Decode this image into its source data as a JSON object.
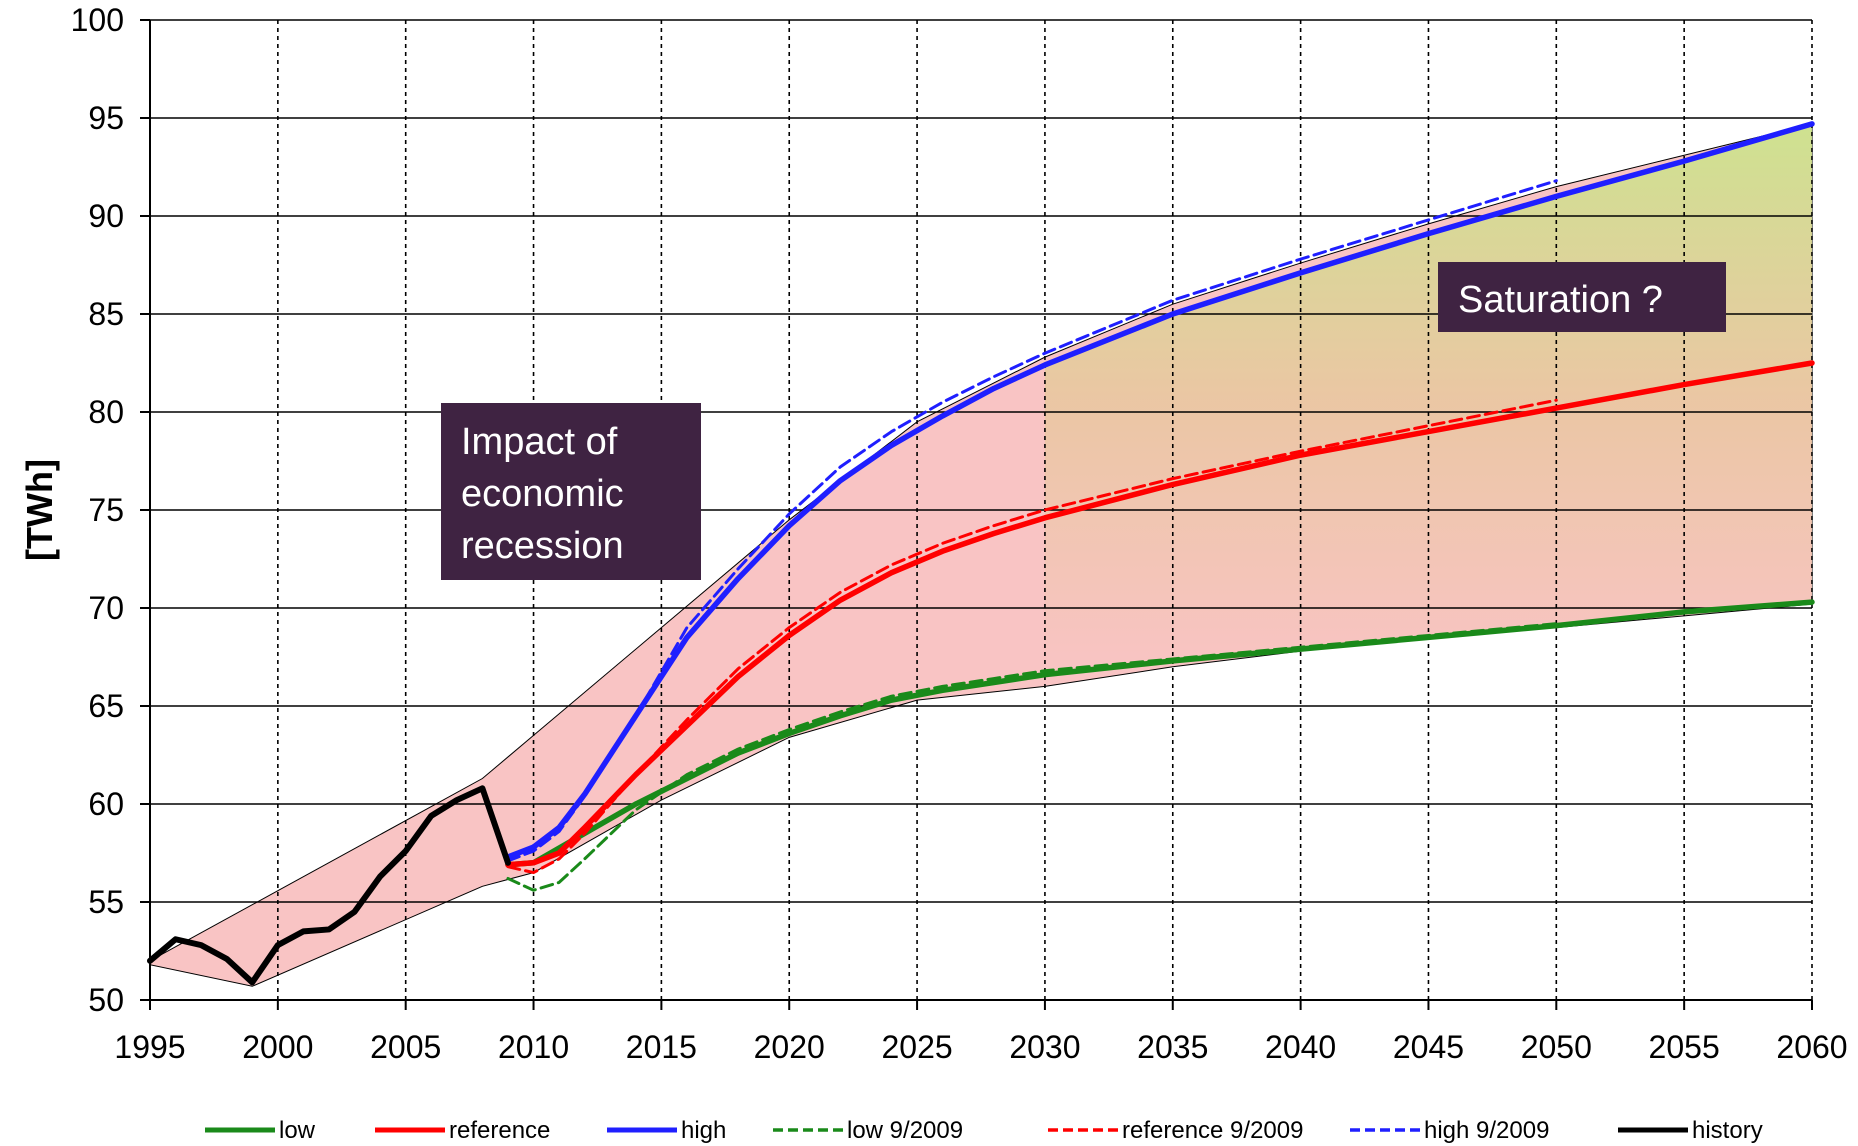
{
  "chart_data": {
    "type": "line",
    "title": "",
    "xlabel": "",
    "ylabel": "[TWh]",
    "xlim": [
      1995,
      2060
    ],
    "ylim": [
      50,
      100
    ],
    "x_ticks": [
      1995,
      2000,
      2005,
      2010,
      2015,
      2020,
      2025,
      2030,
      2035,
      2040,
      2045,
      2050,
      2055,
      2060
    ],
    "y_ticks": [
      50,
      55,
      60,
      65,
      70,
      75,
      80,
      85,
      90,
      95,
      100
    ],
    "grid": true,
    "legend_position": "bottom",
    "colors": {
      "low": "#1a8a1a",
      "reference": "#ff0000",
      "high": "#1f1fff",
      "history": "#000000",
      "annotation_box": "#3f2342",
      "band_fill": "#f9c4c4"
    },
    "series": [
      {
        "name": "low",
        "style": "solid",
        "color": "#1a8a1a",
        "x": [
          2009,
          2010,
          2012,
          2014,
          2016,
          2018,
          2020,
          2022,
          2024,
          2026,
          2028,
          2030,
          2035,
          2040,
          2045,
          2050,
          2055,
          2060
        ],
        "y": [
          56.9,
          57.0,
          58.5,
          60.0,
          61.3,
          62.6,
          63.6,
          64.5,
          65.3,
          65.8,
          66.2,
          66.6,
          67.3,
          67.9,
          68.5,
          69.1,
          69.8,
          70.3
        ]
      },
      {
        "name": "reference",
        "style": "solid",
        "color": "#ff0000",
        "x": [
          2009,
          2010,
          2011,
          2012,
          2014,
          2016,
          2018,
          2020,
          2022,
          2024,
          2026,
          2028,
          2030,
          2035,
          2040,
          2045,
          2050,
          2055,
          2060
        ],
        "y": [
          56.9,
          57.0,
          57.5,
          58.8,
          61.5,
          64.0,
          66.5,
          68.6,
          70.4,
          71.8,
          72.9,
          73.8,
          74.6,
          76.3,
          77.8,
          79.0,
          80.2,
          81.4,
          82.5
        ]
      },
      {
        "name": "high",
        "style": "solid",
        "color": "#1f1fff",
        "x": [
          2009,
          2010,
          2011,
          2012,
          2014,
          2016,
          2018,
          2020,
          2022,
          2024,
          2026,
          2028,
          2030,
          2035,
          2040,
          2045,
          2050,
          2055,
          2060
        ],
        "y": [
          57.3,
          57.8,
          58.8,
          60.5,
          64.5,
          68.5,
          71.5,
          74.2,
          76.5,
          78.3,
          79.8,
          81.2,
          82.4,
          85.0,
          87.1,
          89.1,
          91.0,
          92.8,
          94.7
        ]
      },
      {
        "name": "low 9/2009",
        "style": "dashed",
        "color": "#1a8a1a",
        "x": [
          2009,
          2010,
          2011,
          2012,
          2014,
          2016,
          2018,
          2020,
          2022,
          2024,
          2026,
          2028,
          2030,
          2035,
          2040,
          2045,
          2050
        ],
        "y": [
          56.2,
          55.6,
          56.0,
          57.2,
          59.7,
          61.5,
          62.8,
          63.8,
          64.7,
          65.5,
          66.0,
          66.4,
          66.8,
          67.4,
          68.0,
          68.6,
          69.2
        ]
      },
      {
        "name": "reference 9/2009",
        "style": "dashed",
        "color": "#ff0000",
        "x": [
          2009,
          2010,
          2011,
          2012,
          2014,
          2016,
          2018,
          2020,
          2022,
          2024,
          2026,
          2028,
          2030,
          2035,
          2040,
          2045,
          2050
        ],
        "y": [
          56.8,
          56.5,
          57.2,
          58.5,
          61.5,
          64.3,
          66.9,
          69.0,
          70.8,
          72.2,
          73.3,
          74.2,
          75.0,
          76.6,
          78.0,
          79.3,
          80.6
        ]
      },
      {
        "name": "high 9/2009",
        "style": "dashed",
        "color": "#1f1fff",
        "x": [
          2009,
          2010,
          2011,
          2012,
          2014,
          2016,
          2018,
          2020,
          2022,
          2024,
          2026,
          2028,
          2030,
          2035,
          2040,
          2045,
          2050
        ],
        "y": [
          57.1,
          57.6,
          58.6,
          60.4,
          64.5,
          69.0,
          72.0,
          74.8,
          77.2,
          79.0,
          80.5,
          81.8,
          83.0,
          85.7,
          87.8,
          89.8,
          91.8
        ]
      },
      {
        "name": "history",
        "style": "solid",
        "color": "#000000",
        "x": [
          1995,
          1996,
          1997,
          1998,
          1999,
          2000,
          2001,
          2002,
          2003,
          2004,
          2005,
          2006,
          2007,
          2008,
          2009
        ],
        "y": [
          52.0,
          53.1,
          52.8,
          52.1,
          50.9,
          52.8,
          53.5,
          53.6,
          54.5,
          56.3,
          57.6,
          59.4,
          60.2,
          60.8,
          57.0
        ]
      }
    ],
    "band_upper": {
      "x": [
        1995,
        2008,
        2010,
        2015,
        2020,
        2025,
        2030,
        2035,
        2040,
        2045,
        2050,
        2055,
        2060
      ],
      "y": [
        52.0,
        61.3,
        63.5,
        69.0,
        74.5,
        79.5,
        82.8,
        85.5,
        87.6,
        89.6,
        91.5,
        93.1,
        94.7
      ]
    },
    "band_lower": {
      "x": [
        1995,
        1999,
        2008,
        2010,
        2015,
        2020,
        2025,
        2030,
        2035,
        2040,
        2045,
        2050,
        2055,
        2060
      ],
      "y": [
        51.8,
        50.7,
        55.8,
        56.5,
        60.2,
        63.4,
        65.3,
        66.0,
        67.0,
        67.8,
        68.5,
        69.0,
        69.6,
        70.2
      ]
    },
    "annotations": [
      {
        "lines": [
          "Impact of",
          "economic",
          "recession"
        ]
      },
      {
        "lines": [
          "Saturation ?"
        ]
      }
    ]
  }
}
